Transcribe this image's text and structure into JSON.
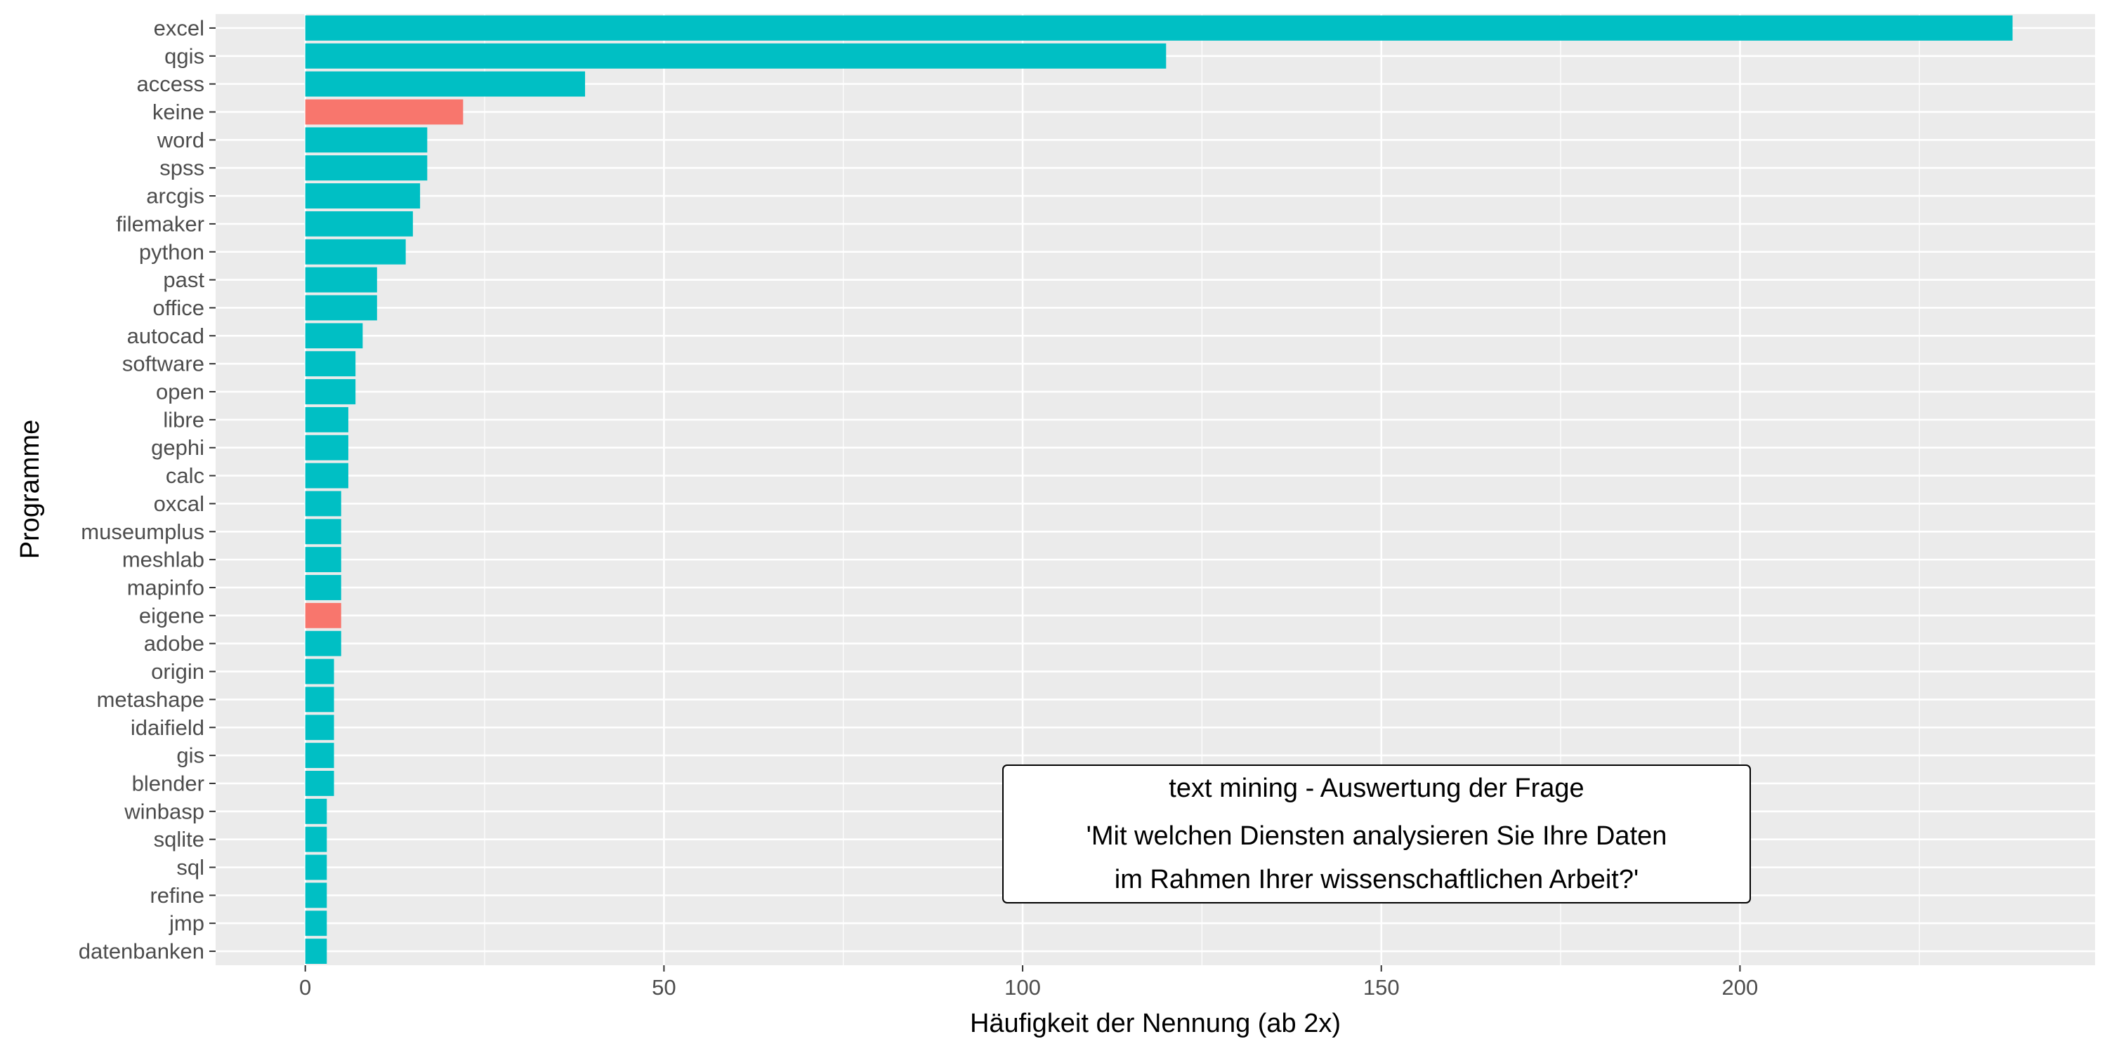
{
  "chart_data": {
    "type": "bar",
    "orientation": "horizontal",
    "xlabel": "Häufigkeit der Nennung (ab 2x)",
    "ylabel": "Programme",
    "xlim": [
      -12.5,
      249.5
    ],
    "xticks": [
      0,
      50,
      100,
      150,
      200
    ],
    "xtick_labels": [
      "0",
      "50",
      "100",
      "150",
      "200"
    ],
    "grid": true,
    "categories": [
      "excel",
      "qgis",
      "access",
      "keine",
      "word",
      "spss",
      "arcgis",
      "filemaker",
      "python",
      "past",
      "office",
      "autocad",
      "software",
      "open",
      "libre",
      "gephi",
      "calc",
      "oxcal",
      "museumplus",
      "meshlab",
      "mapinfo",
      "eigene",
      "adobe",
      "origin",
      "metashape",
      "idaifield",
      "gis",
      "blender",
      "winbasp",
      "sqlite",
      "sql",
      "refine",
      "jmp",
      "datenbanken"
    ],
    "values": [
      238,
      120,
      39,
      22,
      17,
      17,
      16,
      15,
      14,
      10,
      10,
      8,
      7,
      7,
      6,
      6,
      6,
      5,
      5,
      5,
      5,
      5,
      5,
      4,
      4,
      4,
      4,
      4,
      3,
      3,
      3,
      3,
      3,
      3
    ],
    "bar_colors": [
      "#00BFC4",
      "#00BFC4",
      "#00BFC4",
      "#F8766D",
      "#00BFC4",
      "#00BFC4",
      "#00BFC4",
      "#00BFC4",
      "#00BFC4",
      "#00BFC4",
      "#00BFC4",
      "#00BFC4",
      "#00BFC4",
      "#00BFC4",
      "#00BFC4",
      "#00BFC4",
      "#00BFC4",
      "#00BFC4",
      "#00BFC4",
      "#00BFC4",
      "#00BFC4",
      "#F8766D",
      "#00BFC4",
      "#00BFC4",
      "#00BFC4",
      "#00BFC4",
      "#00BFC4",
      "#00BFC4",
      "#00BFC4",
      "#00BFC4",
      "#00BFC4",
      "#00BFC4",
      "#00BFC4",
      "#00BFC4"
    ],
    "annotation": [
      "text mining - Auswertung der Frage",
      "'Mit welchen Diensten analysieren Sie Ihre Daten",
      "im Rahmen Ihrer wissenschaftlichen Arbeit?'"
    ],
    "colors": {
      "panel_background": "#EBEBEB",
      "grid": "#FFFFFF",
      "teal": "#00BFC4",
      "salmon": "#F8766D"
    }
  }
}
